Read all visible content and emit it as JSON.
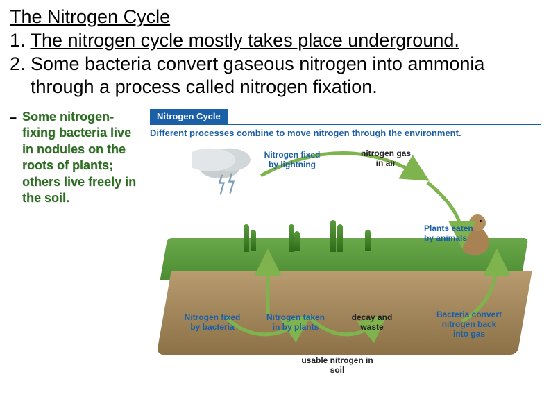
{
  "title": "The Nitrogen Cycle",
  "points": {
    "p1_num": "1. ",
    "p1_underlined": "The nitrogen cycle mostly takes place underground.",
    "p2_num": "2. ",
    "p2_text": "Some bacteria convert gaseous nitrogen into ammonia through a process called nitrogen fixation."
  },
  "sidenote": {
    "dash": "–",
    "text": "Some nitrogen-fixing bacteria live in nodules on the roots of plants; others live freely in the soil.",
    "color": "#2a6d1f"
  },
  "figure": {
    "banner": "Nitrogen Cycle",
    "caption": "Different processes combine to move nitrogen through the environment.",
    "banner_bg": "#1b5fa6",
    "labels": {
      "lightning": "Nitrogen fixed\nby lightning",
      "air": "nitrogen gas\nin air",
      "eaten": "Plants eaten\nby animals",
      "fixed_bact": "Nitrogen fixed\nby bacteria",
      "taken_plants": "Nitrogen taken\nin by plants",
      "decay": "decay and\nwaste",
      "convert_back": "Bacteria convert\nnitrogen back\ninto gas",
      "usable": "usable nitrogen in\nsoil"
    },
    "colors": {
      "sky": "#ffffff",
      "grass": "#4c8d33",
      "soil": "#8c7147",
      "arrow": "#7fb34d",
      "label_blue": "#1b5fa6",
      "animal": "#a88252"
    }
  }
}
